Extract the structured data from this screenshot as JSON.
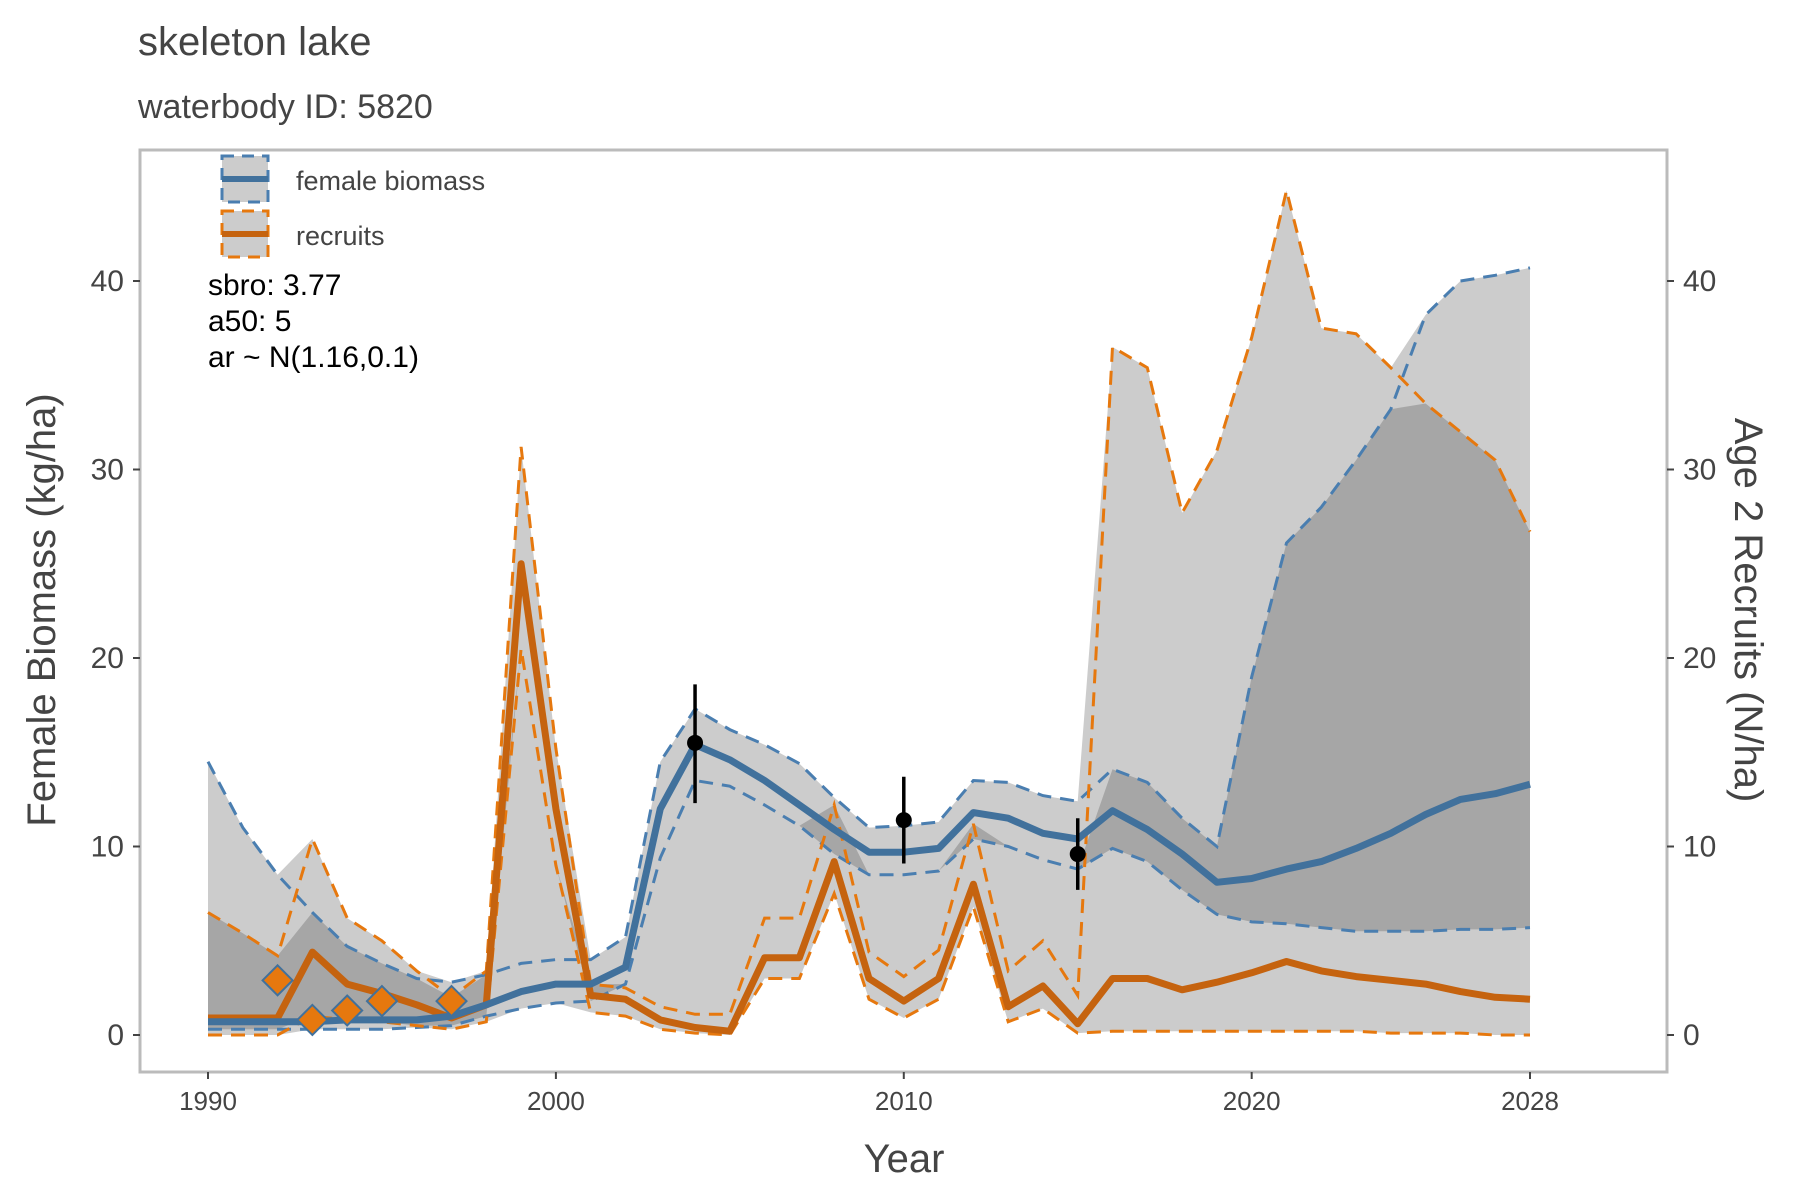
{
  "chart_data": {
    "type": "line",
    "title": "skeleton lake",
    "subtitle": "waterbody ID: 5820",
    "xlabel": "Year",
    "ylabel": "Female Biomass (kg/ha)",
    "ylabel_right": "Age 2 Recruits (N/ha)",
    "xlim": [
      1988,
      2032
    ],
    "ylim": [
      -2,
      47
    ],
    "x_ticks": [
      1990,
      2000,
      2010,
      2020,
      2028
    ],
    "y_ticks": [
      0,
      10,
      20,
      30,
      40
    ],
    "grid": false,
    "legend_position": "top-left",
    "legend": [
      {
        "name": "female biomass",
        "color": "#41719C"
      },
      {
        "name": "recruits",
        "color": "#C5630F"
      }
    ],
    "annotations": [
      "sbro: 3.77",
      "a50: 5",
      "ar ~ N(1.16,0.1)"
    ],
    "colors": {
      "biomass_line": "#41719C",
      "biomass_dash": "#4A7EB0",
      "recruits_line": "#C5630F",
      "recruits_dash": "#E6780E",
      "band_light": "#CCCCCC",
      "band_dark": "#A6A6A6",
      "marker": "#E6780E",
      "point": "#000000",
      "frame": "#BBBBBB"
    },
    "years": [
      1990,
      1991,
      1992,
      1993,
      1994,
      1995,
      1996,
      1997,
      1998,
      1999,
      2000,
      2001,
      2002,
      2003,
      2004,
      2005,
      2006,
      2007,
      2008,
      2009,
      2010,
      2011,
      2012,
      2013,
      2014,
      2015,
      2016,
      2017,
      2018,
      2019,
      2020,
      2021,
      2022,
      2023,
      2024,
      2025,
      2026,
      2027,
      2028
    ],
    "series": [
      {
        "name": "female biomass",
        "values": [
          0.7,
          0.7,
          0.7,
          0.7,
          0.8,
          0.8,
          0.8,
          1.0,
          1.6,
          2.3,
          2.7,
          2.7,
          3.6,
          12.0,
          15.4,
          14.6,
          13.5,
          12.2,
          10.9,
          9.7,
          9.7,
          9.9,
          11.8,
          11.5,
          10.7,
          10.4,
          11.9,
          10.9,
          9.6,
          8.1,
          8.3,
          8.8,
          9.2,
          9.9,
          10.7,
          11.7,
          12.5,
          12.8,
          13.3
        ],
        "lower": [
          0.3,
          0.3,
          0.3,
          0.3,
          0.3,
          0.3,
          0.4,
          0.5,
          1.0,
          1.4,
          1.7,
          1.8,
          2.7,
          9.4,
          13.5,
          13.2,
          12.2,
          11.1,
          9.6,
          8.5,
          8.5,
          8.7,
          10.4,
          10.0,
          9.3,
          8.8,
          9.9,
          9.2,
          7.7,
          6.4,
          6.0,
          5.9,
          5.7,
          5.5,
          5.5,
          5.5,
          5.6,
          5.6,
          5.7
        ],
        "upper": [
          14.5,
          11.0,
          8.5,
          6.5,
          4.7,
          3.8,
          3.0,
          2.8,
          3.2,
          3.8,
          4.0,
          4.0,
          5.2,
          14.5,
          17.3,
          16.2,
          15.4,
          14.4,
          12.6,
          11.0,
          11.1,
          11.3,
          13.5,
          13.4,
          12.7,
          12.4,
          14.1,
          13.4,
          11.5,
          10.0,
          19.0,
          26.1,
          28.0,
          30.5,
          33.2,
          38.2,
          40.0,
          40.3,
          40.7
        ]
      },
      {
        "name": "recruits",
        "values": [
          0.9,
          0.9,
          0.9,
          4.4,
          2.7,
          2.2,
          1.6,
          0.9,
          1.6,
          25.0,
          12.0,
          2.1,
          1.9,
          0.8,
          0.4,
          0.2,
          4.1,
          4.1,
          9.2,
          3.0,
          1.8,
          3.0,
          8.0,
          1.5,
          2.6,
          0.6,
          3.0,
          3.0,
          2.4,
          2.8,
          3.3,
          3.9,
          3.4,
          3.1,
          2.9,
          2.7,
          2.3,
          2.0,
          1.9
        ],
        "lower": [
          0.0,
          0.0,
          0.0,
          1.0,
          0.8,
          0.7,
          0.5,
          0.3,
          0.7,
          20.5,
          9.0,
          1.2,
          1.0,
          0.3,
          0.1,
          0.0,
          3.0,
          3.0,
          7.5,
          1.9,
          0.9,
          1.9,
          6.8,
          0.7,
          1.4,
          0.1,
          0.2,
          0.2,
          0.2,
          0.2,
          0.2,
          0.2,
          0.2,
          0.2,
          0.1,
          0.1,
          0.1,
          0.0,
          0.0
        ],
        "upper": [
          6.5,
          5.4,
          4.2,
          10.4,
          6.2,
          5.0,
          3.4,
          2.0,
          3.4,
          31.2,
          15.2,
          2.7,
          2.5,
          1.5,
          1.1,
          1.1,
          6.2,
          6.2,
          12.2,
          4.4,
          3.1,
          4.5,
          11.2,
          3.4,
          5.0,
          2.1,
          36.5,
          35.4,
          27.7,
          31.0,
          37.0,
          44.8,
          37.5,
          37.2,
          35.4,
          33.5,
          32.0,
          30.5,
          26.7
        ]
      }
    ],
    "obs_points": [
      {
        "x": 2004,
        "y": 15.5,
        "lo": 12.3,
        "hi": 18.6
      },
      {
        "x": 2010,
        "y": 11.4,
        "lo": 9.1,
        "hi": 13.7
      },
      {
        "x": 2015,
        "y": 9.6,
        "lo": 7.7,
        "hi": 11.5
      }
    ],
    "recruit_markers": [
      {
        "x": 1992,
        "y": 2.9
      },
      {
        "x": 1993,
        "y": 0.8
      },
      {
        "x": 1994,
        "y": 1.3
      },
      {
        "x": 1995,
        "y": 1.8
      },
      {
        "x": 1997,
        "y": 1.8
      }
    ]
  }
}
